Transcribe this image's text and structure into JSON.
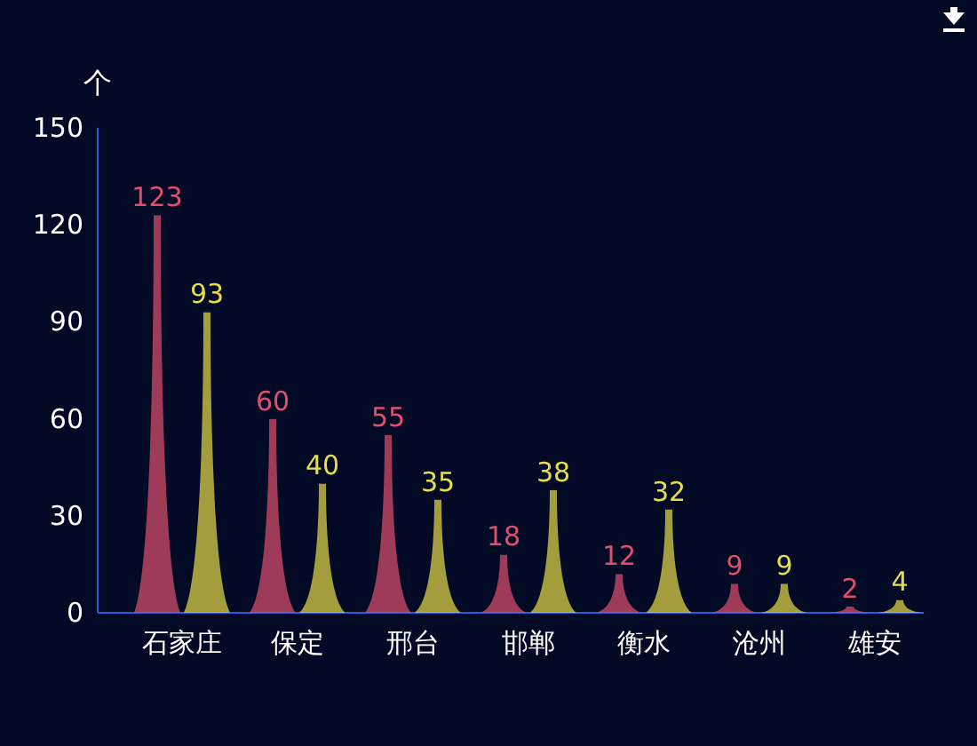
{
  "chart_data": {
    "type": "bar",
    "ylabel": "个",
    "categories": [
      "石家庄",
      "保定",
      "邢台",
      "邯郸",
      "衡水",
      "沧州",
      "雄安"
    ],
    "series": [
      {
        "color": "#e0506e",
        "values": [
          123,
          60,
          55,
          18,
          12,
          9,
          2
        ]
      },
      {
        "color": "#e8dc48",
        "values": [
          93,
          40,
          35,
          38,
          32,
          9,
          4
        ]
      }
    ],
    "ylim": [
      0,
      150
    ],
    "yticks": [
      0,
      30,
      60,
      90,
      120,
      150
    ],
    "data_labels": true,
    "grid": false
  }
}
